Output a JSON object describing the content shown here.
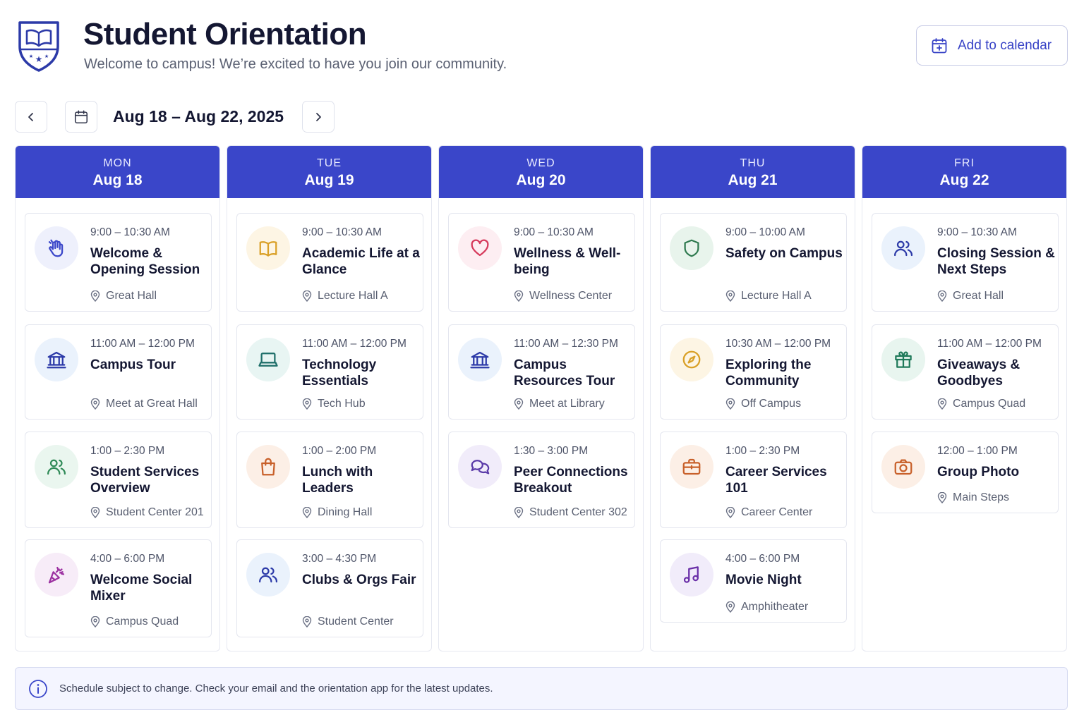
{
  "header": {
    "title": "Student Orientation",
    "subtitle": "Welcome to campus! We’re excited to have you join our community.",
    "add_to_calendar_label": "Add to calendar",
    "crest_icon": "shield-book-icon"
  },
  "nav": {
    "date_range": "Aug 18 – Aug 22, 2025",
    "prev_icon": "chevron-left-icon",
    "calendar_icon": "calendar-icon",
    "next_icon": "chevron-right-icon"
  },
  "days": [
    {
      "name": "MON",
      "date": "Aug 18",
      "events": [
        {
          "time": "9:00 – 10:30 AM",
          "title": "Welcome & Opening Session",
          "location": "Great Hall",
          "icon": "waving-hand",
          "color": "#3a46c9",
          "bg": "#eef0fc"
        },
        {
          "time": "11:00 AM – 12:00 PM",
          "title": "Campus Tour",
          "location": "Meet at Great Hall",
          "icon": "building",
          "color": "#2c3aa8",
          "bg": "#eaf2fc"
        },
        {
          "time": "1:00 – 2:30 PM",
          "title": "Student Services Overview",
          "location": "Student Center 201",
          "icon": "users",
          "color": "#2f8a57",
          "bg": "#eaf6ef"
        },
        {
          "time": "4:00 – 6:00 PM",
          "title": "Welcome Social Mixer",
          "location": "Campus Quad",
          "icon": "party-popper",
          "color": "#9b2fa0",
          "bg": "#f7ecf8"
        }
      ]
    },
    {
      "name": "TUE",
      "date": "Aug 19",
      "events": [
        {
          "time": "9:00 – 10:30 AM",
          "title": "Academic Life at a Glance",
          "location": "Lecture Hall A",
          "icon": "book",
          "color": "#d9a027",
          "bg": "#fdf5e4"
        },
        {
          "time": "11:00 AM – 12:00 PM",
          "title": "Technology Essentials",
          "location": "Tech Hub",
          "icon": "laptop",
          "color": "#1f6f6a",
          "bg": "#e8f5f3"
        },
        {
          "time": "1:00 – 2:00 PM",
          "title": "Lunch with Leaders",
          "location": "Dining Hall",
          "icon": "shopping-bag",
          "color": "#c8602a",
          "bg": "#fcefe6"
        },
        {
          "time": "3:00 – 4:30 PM",
          "title": "Clubs & Orgs Fair",
          "location": "Student Center",
          "icon": "users",
          "color": "#2c3aa8",
          "bg": "#eaf2fc"
        }
      ]
    },
    {
      "name": "WED",
      "date": "Aug 20",
      "events": [
        {
          "time": "9:00 – 10:30 AM",
          "title": "Wellness & Well-being",
          "location": "Wellness Center",
          "icon": "heart",
          "color": "#d63a5c",
          "bg": "#fdeef2"
        },
        {
          "time": "11:00 AM – 12:30 PM",
          "title": "Campus Resources Tour",
          "location": "Meet at Library",
          "icon": "building",
          "color": "#2c3aa8",
          "bg": "#eaf2fc"
        },
        {
          "time": "1:30 – 3:00 PM",
          "title": "Peer Connections Breakout",
          "location": "Student Center 302",
          "icon": "chat",
          "color": "#5a3aa8",
          "bg": "#f1ecfa"
        }
      ]
    },
    {
      "name": "THU",
      "date": "Aug 21",
      "events": [
        {
          "time": "9:00 – 10:00 AM",
          "title": "Safety on Campus",
          "location": "Lecture Hall A",
          "icon": "shield",
          "color": "#2f7a4f",
          "bg": "#e8f4ec"
        },
        {
          "time": "10:30 AM – 12:00 PM",
          "title": "Exploring the Community",
          "location": "Off Campus",
          "icon": "compass",
          "color": "#d9a027",
          "bg": "#fdf5e4"
        },
        {
          "time": "1:00 – 2:30 PM",
          "title": "Career Services 101",
          "location": "Career Center",
          "icon": "briefcase",
          "color": "#c8602a",
          "bg": "#fcefe6"
        },
        {
          "time": "4:00 – 6:00 PM",
          "title": "Movie Night",
          "location": "Amphitheater",
          "icon": "music",
          "color": "#6a2fa8",
          "bg": "#f1ecfa"
        }
      ]
    },
    {
      "name": "FRI",
      "date": "Aug 22",
      "events": [
        {
          "time": "9:00 – 10:30 AM",
          "title": "Closing Session & Next Steps",
          "location": "Great Hall",
          "icon": "users",
          "color": "#2c3aa8",
          "bg": "#eaf2fc"
        },
        {
          "time": "11:00 AM – 12:00 PM",
          "title": "Giveaways & Goodbyes",
          "location": "Campus Quad",
          "icon": "gift",
          "color": "#1f7a5a",
          "bg": "#e8f5ef"
        },
        {
          "time": "12:00 – 1:00 PM",
          "title": "Group Photo",
          "location": "Main Steps",
          "icon": "camera",
          "color": "#c8602a",
          "bg": "#fcefe6"
        }
      ]
    }
  ],
  "notice": {
    "text": "Schedule subject to change. Check your email and the orientation app for the latest updates.",
    "icon": "info-icon"
  },
  "colors": {
    "accent": "#3a46c9",
    "title": "#141732",
    "muted": "#5a6072"
  }
}
